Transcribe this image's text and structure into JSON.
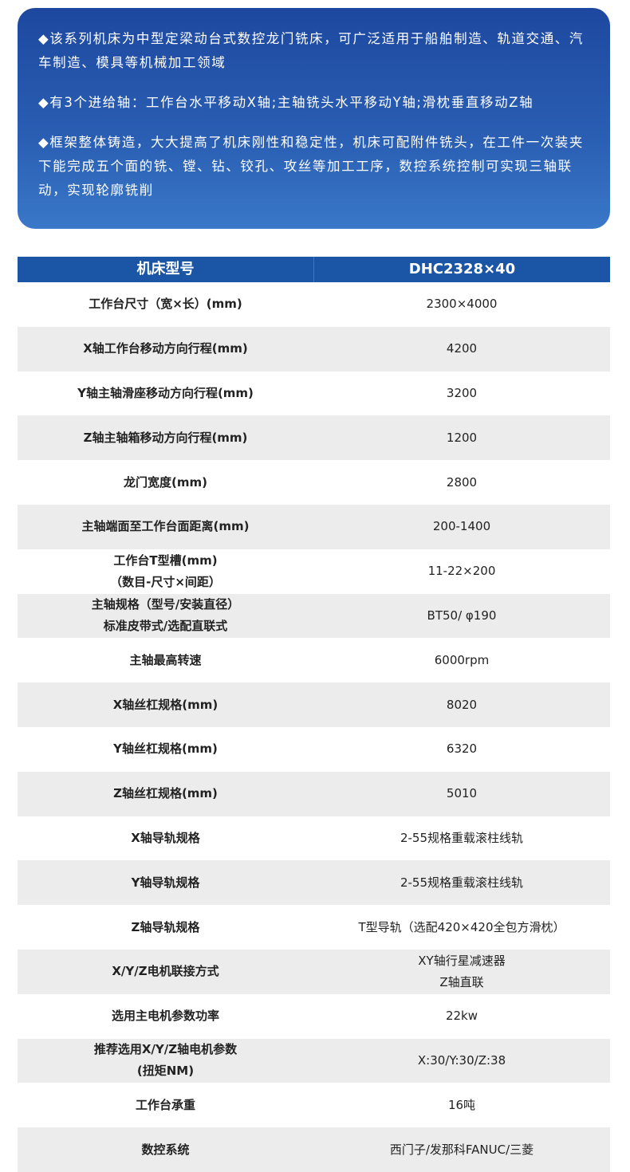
{
  "intro": [
    "◆该系列机床为中型定梁动台式数控龙门铣床，可广泛适用于船舶制造、轨道交通、汽车制造、模具等机械加工领域",
    "◆有3个进给轴：工作台水平移动X轴;主轴铣头水平移动Y轴;滑枕垂直移动Z轴",
    "◆框架整体铸造，大大提高了机床刚性和稳定性，机床可配附件铣头，在工件一次装夹下能完成五个面的铣、镗、钻、铰孔、攻丝等加工工序，数控系统控制可实现三轴联动，实现轮廓铣削"
  ],
  "table": {
    "header": [
      "机床型号",
      "DHC2328×40"
    ],
    "rows": [
      [
        "工作台尺寸（宽×长）(mm)",
        "2300×4000"
      ],
      [
        "X轴工作台移动方向行程(mm)",
        "4200"
      ],
      [
        "Y轴主轴滑座移动方向行程(mm)",
        "3200"
      ],
      [
        "Z轴主轴箱移动方向行程(mm)",
        "1200"
      ],
      [
        "龙门宽度(mm)",
        "2800"
      ],
      [
        "主轴端面至工作台面距离(mm)",
        "200-1400"
      ],
      [
        "工作台T型槽(mm)\n（数目-尺寸×间距）",
        "11-22×200"
      ],
      [
        "主轴规格（型号/安装直径）\n标准皮带式/选配直联式",
        "BT50/ φ190"
      ],
      [
        "主轴最高转速",
        "6000rpm"
      ],
      [
        "X轴丝杠规格(mm)",
        "8020"
      ],
      [
        "Y轴丝杠规格(mm)",
        "6320"
      ],
      [
        "Z轴丝杠规格(mm)",
        "5010"
      ],
      [
        "X轴导轨规格",
        "2-55规格重载滚柱线轨"
      ],
      [
        "Y轴导轨规格",
        "2-55规格重载滚柱线轨"
      ],
      [
        "Z轴导轨规格",
        "T型导轨（选配420×420全包方滑枕）"
      ],
      [
        "X/Y/Z电机联接方式",
        "XY轴行星减速器\nZ轴直联"
      ],
      [
        "选用主电机参数功率",
        "22kw"
      ],
      [
        "推荐选用X/Y/Z轴电机参数\n(扭矩NM)",
        "X:30/Y:30/Z:38"
      ],
      [
        "工作台承重",
        "16吨"
      ],
      [
        "数控系统",
        "西门子/发那科FANUC/三菱"
      ]
    ]
  }
}
